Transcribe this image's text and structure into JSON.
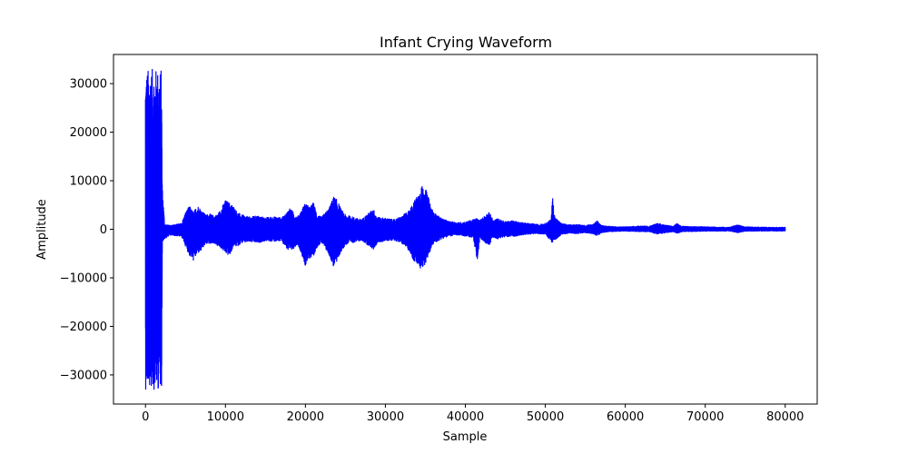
{
  "chart_data": {
    "type": "line",
    "title": "Infant Crying Waveform",
    "xlabel": "Sample",
    "ylabel": "Amplitude",
    "xlim": [
      -4000,
      84000
    ],
    "ylim": [
      -36000,
      36000
    ],
    "xticks": [
      0,
      10000,
      20000,
      30000,
      40000,
      50000,
      60000,
      70000,
      80000
    ],
    "yticks": [
      -30000,
      -20000,
      -10000,
      0,
      10000,
      20000,
      30000
    ],
    "grid": false,
    "series": [
      {
        "color": "#0000ff",
        "envelope": {
          "x": [
            0,
            100,
            2000,
            2100,
            2400,
            3000,
            4500,
            5000,
            5500,
            6000,
            6500,
            7000,
            7500,
            8000,
            8500,
            9000,
            9500,
            10000,
            10500,
            11000,
            11500,
            12000,
            13000,
            14000,
            15000,
            16000,
            17000,
            17500,
            18000,
            18500,
            19000,
            19500,
            20000,
            20500,
            21000,
            21500,
            22000,
            23000,
            23500,
            24000,
            24500,
            25000,
            26000,
            27000,
            28000,
            28500,
            29000,
            30000,
            31000,
            32000,
            33000,
            33500,
            34000,
            34500,
            35000,
            35500,
            36000,
            37000,
            38000,
            39000,
            40000,
            41000,
            41500,
            41800,
            42500,
            43000,
            43500,
            44000,
            45000,
            46000,
            47000,
            48000,
            49000,
            50000,
            50700,
            50900,
            51200,
            52000,
            53000,
            54000,
            55000,
            56000,
            56500,
            57000,
            58000,
            60000,
            62000,
            63000,
            64000,
            66000,
            66500,
            67000,
            70000,
            73000,
            74000,
            75000,
            78000,
            80000
          ],
          "upper": [
            33000,
            33000,
            33000,
            9000,
            1000,
            800,
            1200,
            3500,
            4800,
            3500,
            5000,
            4000,
            3000,
            3200,
            2800,
            3000,
            4500,
            6000,
            5500,
            4800,
            3500,
            3000,
            2500,
            2800,
            2400,
            2600,
            2400,
            3000,
            4500,
            3500,
            2500,
            4000,
            5500,
            4500,
            5500,
            3000,
            2500,
            4500,
            6800,
            6000,
            4000,
            3000,
            2500,
            2000,
            3500,
            4200,
            2500,
            2300,
            2000,
            2600,
            4000,
            5500,
            7000,
            9000,
            8500,
            6000,
            3500,
            2300,
            1600,
            1400,
            1500,
            2000,
            2300,
            1800,
            3000,
            3500,
            1800,
            2200,
            1600,
            1800,
            1400,
            1200,
            1000,
            1200,
            2000,
            6800,
            2500,
            1200,
            900,
            1000,
            800,
            1100,
            1800,
            800,
            600,
            500,
            700,
            600,
            1200,
            600,
            1300,
            600,
            500,
            400,
            900,
            500,
            400,
            400
          ],
          "lower": [
            -33000,
            -33000,
            -33000,
            -2500,
            -2000,
            -1200,
            -1500,
            -3500,
            -5500,
            -6500,
            -5000,
            -4500,
            -3000,
            -3000,
            -2800,
            -3500,
            -4000,
            -5000,
            -5500,
            -3500,
            -3500,
            -2800,
            -2600,
            -2800,
            -2400,
            -2500,
            -2500,
            -3500,
            -5000,
            -4000,
            -3000,
            -5000,
            -7800,
            -6000,
            -5500,
            -3500,
            -2800,
            -5500,
            -7800,
            -6500,
            -4500,
            -3200,
            -2700,
            -2300,
            -3500,
            -4200,
            -2800,
            -2400,
            -2200,
            -2800,
            -4500,
            -6500,
            -7500,
            -8500,
            -7000,
            -5000,
            -3000,
            -2000,
            -1400,
            -1200,
            -1400,
            -1800,
            -7000,
            -1800,
            -2800,
            -3200,
            -1600,
            -2000,
            -1500,
            -1500,
            -1200,
            -1000,
            -900,
            -1000,
            -2500,
            -2800,
            -2200,
            -1100,
            -800,
            -900,
            -700,
            -900,
            -1400,
            -700,
            -500,
            -400,
            -500,
            -500,
            -1000,
            -500,
            -900,
            -500,
            -400,
            -350,
            -700,
            -400,
            -350,
            -350
          ]
        }
      }
    ]
  }
}
